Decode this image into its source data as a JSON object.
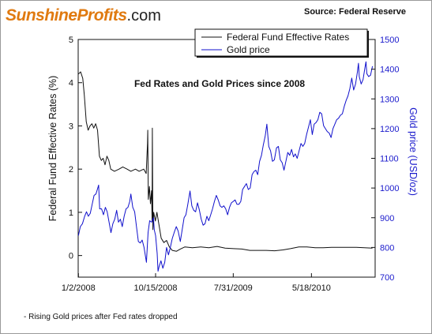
{
  "header": {
    "logo_brand": "SunshineProfits",
    "logo_tld": ".com",
    "source": "Source: Federal Reserve"
  },
  "footnote": "- Rising Gold prices after Fed rates dropped",
  "chart_data": {
    "type": "line",
    "title": "Fed Rates and Gold Prices since 2008",
    "xlabel": "",
    "ylabel_left": "Federal Fund Effective Rates (%)",
    "ylabel_right": "Gold price (USD/oz)",
    "x_ticks": [
      "1/2/2008",
      "10/15/2008",
      "7/31/2009",
      "5/18/2010"
    ],
    "xlim": [
      "2008-01-01",
      "2011-01-10"
    ],
    "ylim_left": [
      -0.5,
      5
    ],
    "ylim_right": [
      700,
      1500
    ],
    "yticks_left": [
      0,
      1,
      2,
      3,
      4,
      5
    ],
    "yticks_right": [
      700,
      800,
      900,
      1000,
      1100,
      1200,
      1300,
      1400,
      1500
    ],
    "legend_placement": "top-center",
    "colors": {
      "fed": "#111111",
      "gold": "#1010cc",
      "right_axis": "#1a1acc"
    },
    "series": [
      {
        "name": "Federal Fund Effective Rates",
        "axis": "left",
        "points": [
          [
            "2008-01-02",
            4.2
          ],
          [
            "2008-01-10",
            4.25
          ],
          [
            "2008-01-18",
            4.1
          ],
          [
            "2008-01-24",
            3.7
          ],
          [
            "2008-01-31",
            3.1
          ],
          [
            "2008-02-07",
            2.9
          ],
          [
            "2008-02-14",
            3.0
          ],
          [
            "2008-02-21",
            3.05
          ],
          [
            "2008-02-28",
            2.95
          ],
          [
            "2008-03-06",
            3.05
          ],
          [
            "2008-03-13",
            2.9
          ],
          [
            "2008-03-20",
            2.3
          ],
          [
            "2008-03-27",
            2.2
          ],
          [
            "2008-04-03",
            2.25
          ],
          [
            "2008-04-10",
            2.1
          ],
          [
            "2008-04-17",
            2.3
          ],
          [
            "2008-04-24",
            2.2
          ],
          [
            "2008-05-01",
            2.0
          ],
          [
            "2008-05-15",
            1.95
          ],
          [
            "2008-06-01",
            2.0
          ],
          [
            "2008-06-15",
            2.05
          ],
          [
            "2008-07-01",
            2.0
          ],
          [
            "2008-07-15",
            1.95
          ],
          [
            "2008-08-01",
            2.0
          ],
          [
            "2008-08-15",
            1.95
          ],
          [
            "2008-09-01",
            2.0
          ],
          [
            "2008-09-10",
            1.9
          ],
          [
            "2008-09-15",
            2.6
          ],
          [
            "2008-09-16",
            2.9
          ],
          [
            "2008-09-18",
            1.3
          ],
          [
            "2008-09-22",
            1.6
          ],
          [
            "2008-09-26",
            1.2
          ],
          [
            "2008-09-30",
            1.5
          ],
          [
            "2008-10-02",
            0.8
          ],
          [
            "2008-10-03",
            2.95
          ],
          [
            "2008-10-05",
            0.6
          ],
          [
            "2008-10-08",
            1.0
          ],
          [
            "2008-10-14",
            0.8
          ],
          [
            "2008-10-20",
            1.0
          ],
          [
            "2008-10-28",
            0.7
          ],
          [
            "2008-11-05",
            0.4
          ],
          [
            "2008-11-15",
            0.3
          ],
          [
            "2008-11-25",
            0.35
          ],
          [
            "2008-12-05",
            0.2
          ],
          [
            "2008-12-16",
            0.12
          ],
          [
            "2009-01-01",
            0.1
          ],
          [
            "2009-01-15",
            0.15
          ],
          [
            "2009-02-01",
            0.2
          ],
          [
            "2009-03-01",
            0.18
          ],
          [
            "2009-04-01",
            0.2
          ],
          [
            "2009-05-01",
            0.18
          ],
          [
            "2009-06-01",
            0.21
          ],
          [
            "2009-07-01",
            0.17
          ],
          [
            "2009-08-01",
            0.16
          ],
          [
            "2009-09-01",
            0.15
          ],
          [
            "2009-10-01",
            0.12
          ],
          [
            "2009-11-01",
            0.12
          ],
          [
            "2009-12-01",
            0.12
          ],
          [
            "2010-01-01",
            0.11
          ],
          [
            "2010-02-01",
            0.13
          ],
          [
            "2010-03-01",
            0.16
          ],
          [
            "2010-04-01",
            0.2
          ],
          [
            "2010-05-01",
            0.2
          ],
          [
            "2010-06-01",
            0.18
          ],
          [
            "2010-07-01",
            0.18
          ],
          [
            "2010-08-01",
            0.19
          ],
          [
            "2010-09-01",
            0.19
          ],
          [
            "2010-10-01",
            0.19
          ],
          [
            "2010-11-01",
            0.19
          ],
          [
            "2010-12-01",
            0.18
          ],
          [
            "2010-12-31",
            0.17
          ]
        ]
      },
      {
        "name": "Gold price",
        "axis": "right",
        "points": [
          [
            "2008-01-02",
            840
          ],
          [
            "2008-01-09",
            870
          ],
          [
            "2008-01-17",
            880
          ],
          [
            "2008-01-25",
            905
          ],
          [
            "2008-02-01",
            920
          ],
          [
            "2008-02-08",
            905
          ],
          [
            "2008-02-15",
            915
          ],
          [
            "2008-02-22",
            945
          ],
          [
            "2008-02-29",
            975
          ],
          [
            "2008-03-07",
            980
          ],
          [
            "2008-03-14",
            1000
          ],
          [
            "2008-03-17",
            1010
          ],
          [
            "2008-03-21",
            930
          ],
          [
            "2008-03-28",
            930
          ],
          [
            "2008-04-04",
            910
          ],
          [
            "2008-04-11",
            935
          ],
          [
            "2008-04-18",
            920
          ],
          [
            "2008-04-25",
            885
          ],
          [
            "2008-05-02",
            850
          ],
          [
            "2008-05-09",
            880
          ],
          [
            "2008-05-16",
            895
          ],
          [
            "2008-05-23",
            925
          ],
          [
            "2008-05-30",
            885
          ],
          [
            "2008-06-06",
            895
          ],
          [
            "2008-06-13",
            870
          ],
          [
            "2008-06-20",
            905
          ],
          [
            "2008-06-27",
            930
          ],
          [
            "2008-07-04",
            935
          ],
          [
            "2008-07-11",
            955
          ],
          [
            "2008-07-15",
            980
          ],
          [
            "2008-07-22",
            935
          ],
          [
            "2008-07-29",
            920
          ],
          [
            "2008-08-05",
            870
          ],
          [
            "2008-08-12",
            820
          ],
          [
            "2008-08-19",
            815
          ],
          [
            "2008-08-26",
            825
          ],
          [
            "2008-09-02",
            800
          ],
          [
            "2008-09-11",
            750
          ],
          [
            "2008-09-17",
            850
          ],
          [
            "2008-09-23",
            890
          ],
          [
            "2008-09-30",
            885
          ],
          [
            "2008-10-07",
            900
          ],
          [
            "2008-10-10",
            860
          ],
          [
            "2008-10-15",
            840
          ],
          [
            "2008-10-21",
            780
          ],
          [
            "2008-10-24",
            720
          ],
          [
            "2008-10-28",
            735
          ],
          [
            "2008-11-04",
            755
          ],
          [
            "2008-11-11",
            730
          ],
          [
            "2008-11-18",
            750
          ],
          [
            "2008-11-25",
            800
          ],
          [
            "2008-12-02",
            775
          ],
          [
            "2008-12-09",
            800
          ],
          [
            "2008-12-16",
            830
          ],
          [
            "2008-12-23",
            850
          ],
          [
            "2008-12-31",
            870
          ],
          [
            "2009-01-07",
            855
          ],
          [
            "2009-01-15",
            820
          ],
          [
            "2009-01-22",
            860
          ],
          [
            "2009-01-29",
            900
          ],
          [
            "2009-02-05",
            910
          ],
          [
            "2009-02-12",
            945
          ],
          [
            "2009-02-20",
            990
          ],
          [
            "2009-02-27",
            940
          ],
          [
            "2009-03-06",
            925
          ],
          [
            "2009-03-13",
            920
          ],
          [
            "2009-03-20",
            950
          ],
          [
            "2009-03-27",
            925
          ],
          [
            "2009-04-03",
            895
          ],
          [
            "2009-04-10",
            875
          ],
          [
            "2009-04-17",
            880
          ],
          [
            "2009-04-24",
            905
          ],
          [
            "2009-05-01",
            890
          ],
          [
            "2009-05-08",
            910
          ],
          [
            "2009-05-15",
            930
          ],
          [
            "2009-05-22",
            955
          ],
          [
            "2009-05-29",
            975
          ],
          [
            "2009-06-05",
            960
          ],
          [
            "2009-06-12",
            940
          ],
          [
            "2009-06-19",
            935
          ],
          [
            "2009-06-26",
            940
          ],
          [
            "2009-07-03",
            930
          ],
          [
            "2009-07-10",
            910
          ],
          [
            "2009-07-17",
            935
          ],
          [
            "2009-07-24",
            950
          ],
          [
            "2009-07-31",
            955
          ],
          [
            "2009-08-07",
            960
          ],
          [
            "2009-08-14",
            945
          ],
          [
            "2009-08-21",
            945
          ],
          [
            "2009-08-28",
            955
          ],
          [
            "2009-09-04",
            995
          ],
          [
            "2009-09-11",
            1005
          ],
          [
            "2009-09-18",
            1015
          ],
          [
            "2009-09-25",
            995
          ],
          [
            "2009-10-02",
            1000
          ],
          [
            "2009-10-09",
            1045
          ],
          [
            "2009-10-16",
            1055
          ],
          [
            "2009-10-23",
            1060
          ],
          [
            "2009-10-30",
            1045
          ],
          [
            "2009-11-06",
            1090
          ],
          [
            "2009-11-13",
            1110
          ],
          [
            "2009-11-20",
            1145
          ],
          [
            "2009-11-27",
            1175
          ],
          [
            "2009-12-03",
            1215
          ],
          [
            "2009-12-10",
            1140
          ],
          [
            "2009-12-17",
            1125
          ],
          [
            "2009-12-24",
            1090
          ],
          [
            "2009-12-31",
            1095
          ],
          [
            "2010-01-08",
            1135
          ],
          [
            "2010-01-15",
            1140
          ],
          [
            "2010-01-22",
            1095
          ],
          [
            "2010-01-29",
            1085
          ],
          [
            "2010-02-05",
            1060
          ],
          [
            "2010-02-12",
            1090
          ],
          [
            "2010-02-19",
            1120
          ],
          [
            "2010-02-26",
            1110
          ],
          [
            "2010-03-05",
            1130
          ],
          [
            "2010-03-12",
            1105
          ],
          [
            "2010-03-19",
            1115
          ],
          [
            "2010-03-26",
            1100
          ],
          [
            "2010-04-02",
            1125
          ],
          [
            "2010-04-09",
            1150
          ],
          [
            "2010-04-16",
            1140
          ],
          [
            "2010-04-23",
            1150
          ],
          [
            "2010-04-30",
            1180
          ],
          [
            "2010-05-07",
            1205
          ],
          [
            "2010-05-14",
            1230
          ],
          [
            "2010-05-21",
            1180
          ],
          [
            "2010-05-28",
            1215
          ],
          [
            "2010-06-04",
            1220
          ],
          [
            "2010-06-11",
            1230
          ],
          [
            "2010-06-18",
            1255
          ],
          [
            "2010-06-25",
            1250
          ],
          [
            "2010-07-02",
            1210
          ],
          [
            "2010-07-09",
            1200
          ],
          [
            "2010-07-16",
            1190
          ],
          [
            "2010-07-23",
            1185
          ],
          [
            "2010-07-30",
            1170
          ],
          [
            "2010-08-06",
            1200
          ],
          [
            "2010-08-13",
            1215
          ],
          [
            "2010-08-20",
            1230
          ],
          [
            "2010-08-27",
            1235
          ],
          [
            "2010-09-03",
            1245
          ],
          [
            "2010-09-10",
            1250
          ],
          [
            "2010-09-17",
            1275
          ],
          [
            "2010-09-24",
            1295
          ],
          [
            "2010-10-01",
            1310
          ],
          [
            "2010-10-08",
            1335
          ],
          [
            "2010-10-15",
            1370
          ],
          [
            "2010-10-22",
            1330
          ],
          [
            "2010-10-29",
            1350
          ],
          [
            "2010-11-05",
            1390
          ],
          [
            "2010-11-09",
            1420
          ],
          [
            "2010-11-12",
            1375
          ],
          [
            "2010-11-19",
            1350
          ],
          [
            "2010-11-26",
            1365
          ],
          [
            "2010-12-03",
            1405
          ],
          [
            "2010-12-07",
            1425
          ],
          [
            "2010-12-10",
            1385
          ],
          [
            "2010-12-17",
            1375
          ],
          [
            "2010-12-24",
            1380
          ],
          [
            "2010-12-31",
            1410
          ]
        ]
      }
    ]
  }
}
